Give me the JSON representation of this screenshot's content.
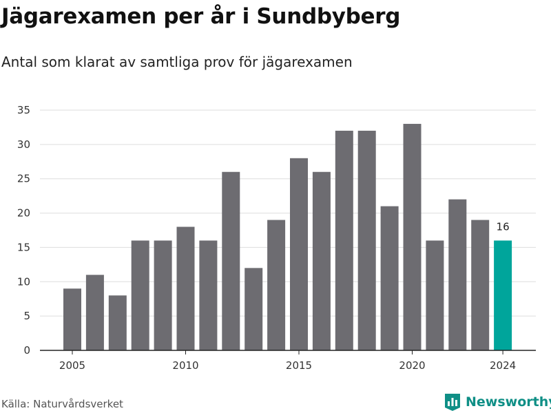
{
  "title": "Jägarexamen per år i Sundbyberg",
  "subtitle": "Antal som klarat av samtliga prov för jägarexamen",
  "source": "Källa: Naturvårdsverket",
  "brand": {
    "name": "Newsworthy",
    "icon": "bar-chart-logo-icon",
    "color": "#0f8f86"
  },
  "chart_data": {
    "type": "bar",
    "title": "Jägarexamen per år i Sundbyberg",
    "subtitle": "Antal som klarat av samtliga prov för jägarexamen",
    "xlabel": "",
    "ylabel": "",
    "ylim": [
      0,
      35
    ],
    "yticks": [
      0,
      5,
      10,
      15,
      20,
      25,
      30,
      35
    ],
    "xticks": [
      2005,
      2010,
      2015,
      2020,
      2024
    ],
    "grid": true,
    "legend": "none",
    "categories": [
      2005,
      2006,
      2007,
      2008,
      2009,
      2010,
      2011,
      2012,
      2013,
      2014,
      2015,
      2016,
      2017,
      2018,
      2019,
      2020,
      2021,
      2022,
      2023,
      2024
    ],
    "values": [
      9,
      11,
      8,
      16,
      16,
      18,
      16,
      26,
      12,
      19,
      28,
      26,
      32,
      32,
      21,
      33,
      16,
      22,
      19,
      16
    ],
    "bar_color": "#6d6c71",
    "highlight_color": "#00a59b",
    "highlight_category": 2024,
    "annotations": [
      {
        "x": 2024,
        "text": "16"
      }
    ]
  }
}
